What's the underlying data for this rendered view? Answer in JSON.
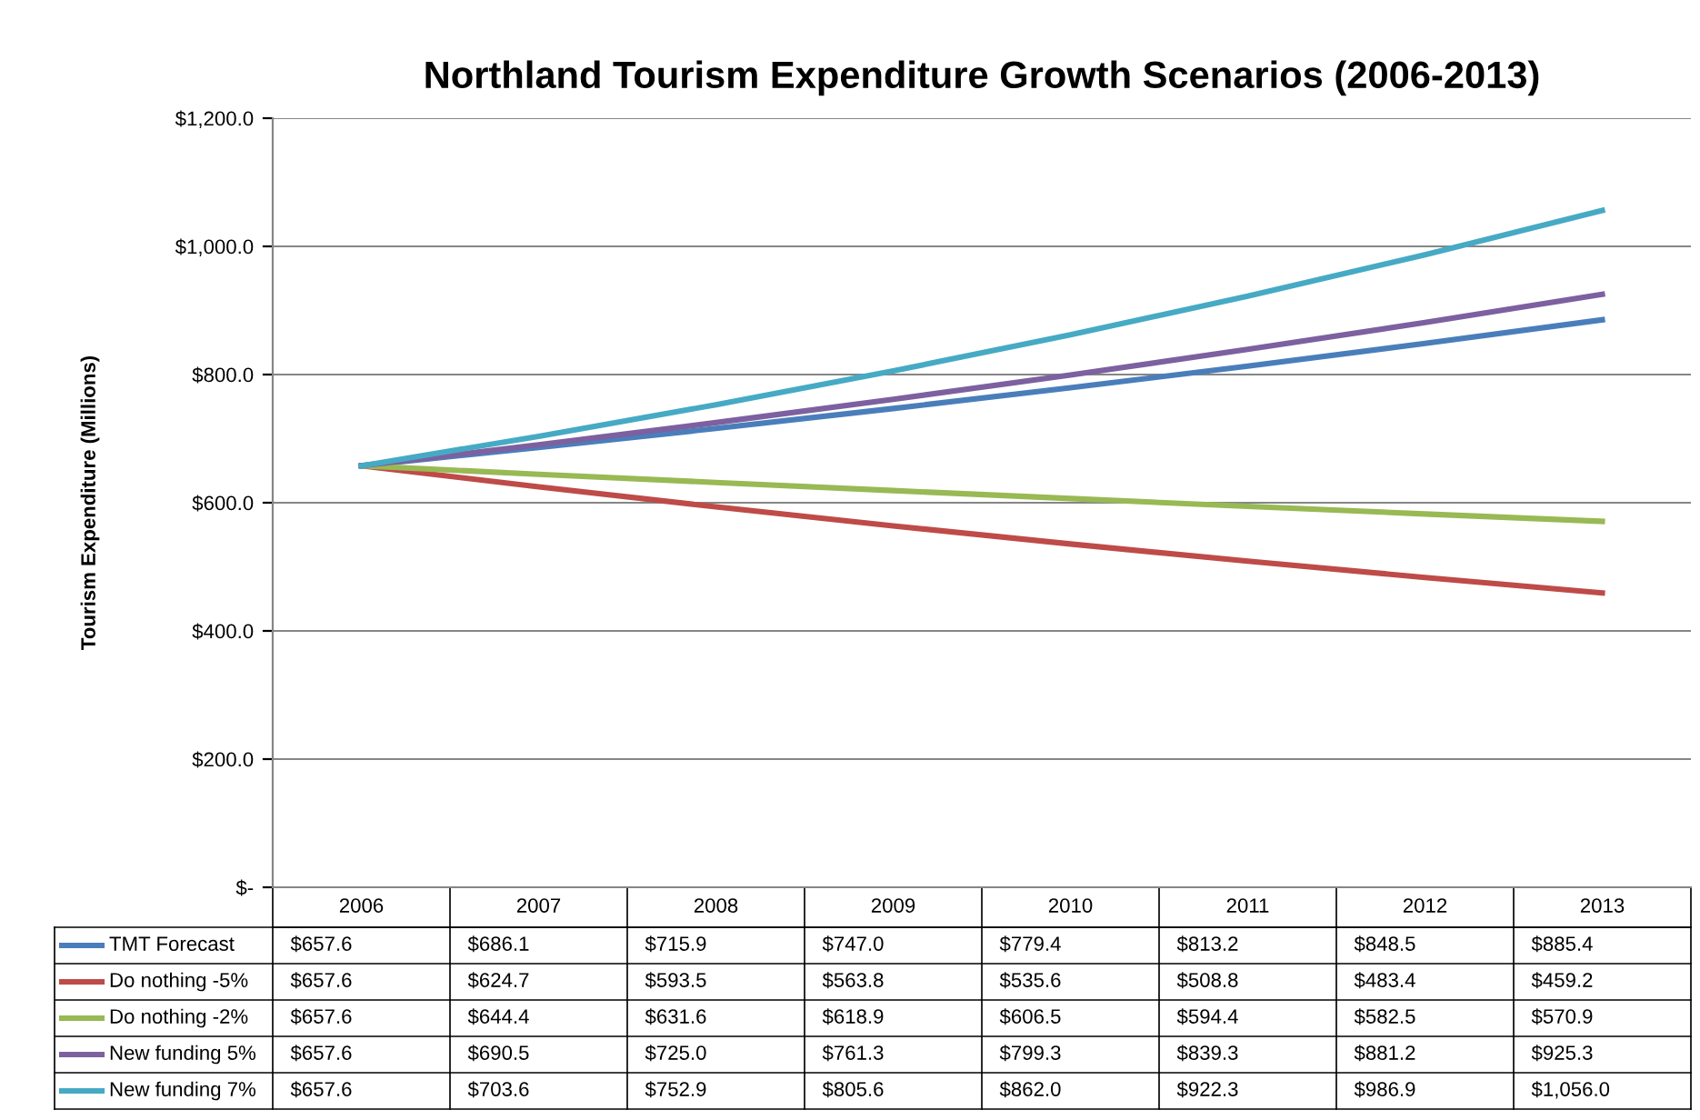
{
  "chart_data": {
    "type": "line",
    "title": "Northland Tourism Expenditure Growth Scenarios (2006-2013)",
    "ylabel": "Tourism Expenditure (Millions)",
    "categories": [
      "2006",
      "2007",
      "2008",
      "2009",
      "2010",
      "2011",
      "2012",
      "2013"
    ],
    "series": [
      {
        "name": "TMT Forecast",
        "color": "#4a7ebb",
        "values": [
          657.6,
          686.1,
          715.9,
          747.0,
          779.4,
          813.2,
          848.5,
          885.4
        ],
        "value_labels": [
          "$657.6",
          "$686.1",
          "$715.9",
          "$747.0",
          "$779.4",
          "$813.2",
          "$848.5",
          "$885.4"
        ]
      },
      {
        "name": "Do nothing -5%",
        "color": "#be4b48",
        "values": [
          657.6,
          624.7,
          593.5,
          563.8,
          535.6,
          508.8,
          483.4,
          459.2
        ],
        "value_labels": [
          "$657.6",
          "$624.7",
          "$593.5",
          "$563.8",
          "$535.6",
          "$508.8",
          "$483.4",
          "$459.2"
        ]
      },
      {
        "name": "Do nothing -2%",
        "color": "#98b954",
        "values": [
          657.6,
          644.4,
          631.6,
          618.9,
          606.5,
          594.4,
          582.5,
          570.9
        ],
        "value_labels": [
          "$657.6",
          "$644.4",
          "$631.6",
          "$618.9",
          "$606.5",
          "$594.4",
          "$582.5",
          "$570.9"
        ]
      },
      {
        "name": "New funding 5%",
        "color": "#7d60a0",
        "values": [
          657.6,
          690.5,
          725.0,
          761.3,
          799.3,
          839.3,
          881.2,
          925.3
        ],
        "value_labels": [
          "$657.6",
          "$690.5",
          "$725.0",
          "$761.3",
          "$799.3",
          "$839.3",
          "$881.2",
          "$925.3"
        ]
      },
      {
        "name": "New funding 7%",
        "color": "#46aac5",
        "values": [
          657.6,
          703.6,
          752.9,
          805.6,
          862.0,
          922.3,
          986.9,
          1056.0
        ],
        "value_labels": [
          "$657.6",
          "$703.6",
          "$752.9",
          "$805.6",
          "$862.0",
          "$922.3",
          "$986.9",
          "$1,056.0"
        ]
      }
    ],
    "ylim": [
      0,
      1200
    ],
    "yticks": [
      {
        "value": 0,
        "label": "$-"
      },
      {
        "value": 200,
        "label": "$200.0"
      },
      {
        "value": 400,
        "label": "$400.0"
      },
      {
        "value": 600,
        "label": "$600.0"
      },
      {
        "value": 800,
        "label": "$800.0"
      },
      {
        "value": 1000,
        "label": "$1,000.0"
      },
      {
        "value": 1200,
        "label": "$1,200.0"
      }
    ],
    "grid": "y",
    "legend": "bottom",
    "marker": "none",
    "line_style": "solid"
  }
}
